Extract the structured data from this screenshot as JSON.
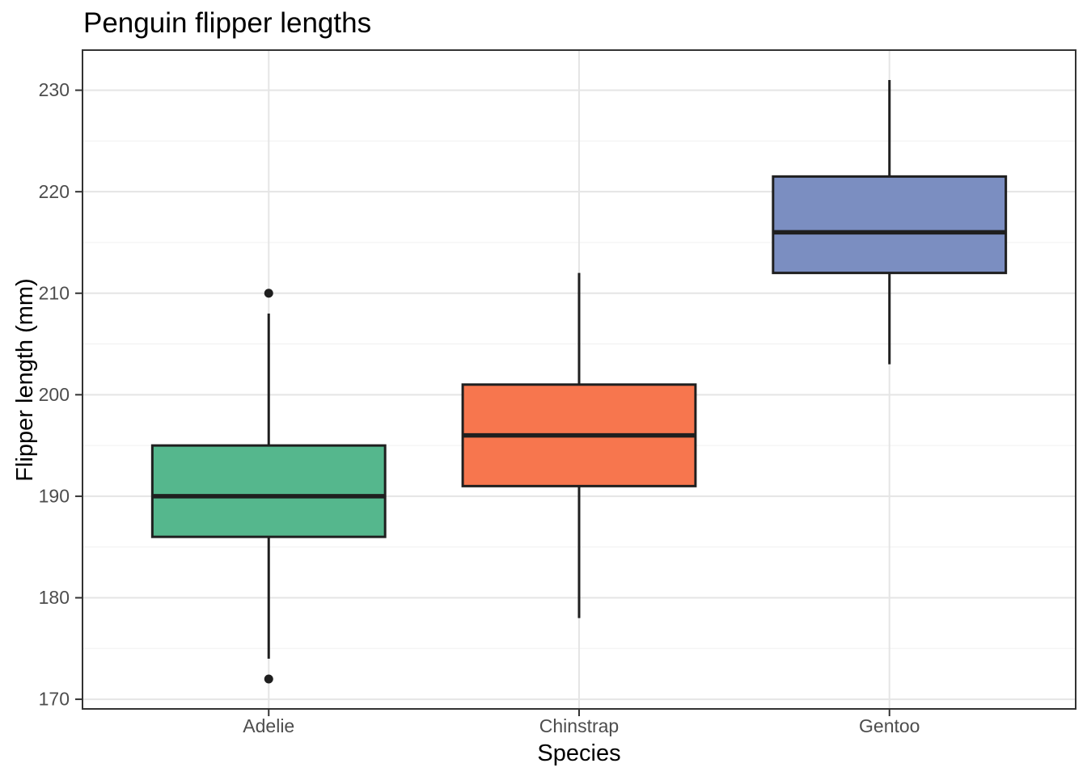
{
  "page": {
    "background": "#FFFFFF"
  },
  "chart_data": {
    "type": "boxplot",
    "title": "Penguin flipper lengths",
    "xlabel": "Species",
    "ylabel": "Flipper length (mm)",
    "categories": [
      "Adelie",
      "Chinstrap",
      "Gentoo"
    ],
    "series": [
      {
        "name": "Adelie",
        "whisker_low": 174,
        "q1": 186,
        "median": 190,
        "q3": 195,
        "whisker_high": 208,
        "outliers": [
          210,
          172
        ],
        "fill": "#55B78D"
      },
      {
        "name": "Chinstrap",
        "whisker_low": 178,
        "q1": 191,
        "median": 196,
        "q3": 201,
        "whisker_high": 212,
        "outliers": [],
        "fill": "#F7764E"
      },
      {
        "name": "Gentoo",
        "whisker_low": 203,
        "q1": 212,
        "median": 216,
        "q3": 221.5,
        "whisker_high": 231,
        "outliers": [],
        "fill": "#7B8EC1"
      }
    ],
    "y_ticks": [
      170,
      180,
      190,
      200,
      210,
      220,
      230
    ],
    "y_minor_gridlines": [
      175,
      185,
      195,
      205,
      215,
      225
    ],
    "ylim": [
      169.05,
      233.95
    ],
    "grid": true,
    "legend": false,
    "colors": {
      "box_stroke": "#1F1F1F",
      "median": "#1F1F1F",
      "whisker": "#1F1F1F",
      "outlier": "#1F1F1F",
      "panel_border": "#333333",
      "tick_mark": "#333333",
      "grid_major": "#E5E5E5",
      "grid_minor": "#F0F0F0",
      "tick_label": "#4D4D4D",
      "text": "#000000",
      "panel_background": "#FFFFFF"
    }
  }
}
